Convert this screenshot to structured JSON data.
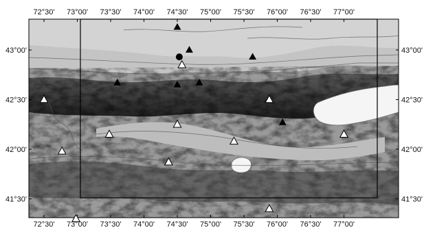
{
  "map": {
    "lon_ticks": [
      "72°30'",
      "73°00'",
      "73°30'",
      "74°00'",
      "74°30'",
      "75°00'",
      "75°30'",
      "76°00'",
      "76°30'",
      "77°00'"
    ],
    "lat_ticks": [
      "43°00'",
      "42°30'",
      "42°00'",
      "41°30'"
    ],
    "lat_left_ticks": [
      "43°00'",
      "42°30'",
      "42°00'",
      "41°30'"
    ],
    "lat_right_ticks": [
      "43°00'",
      "42°30'",
      "42°00'",
      "41°30'"
    ],
    "stations": {
      "open_triangles": [
        {
          "lon": 74.57,
          "lat": 42.85
        },
        {
          "lon": 72.5,
          "lat": 42.5
        },
        {
          "lon": 75.88,
          "lat": 42.5
        },
        {
          "lon": 74.5,
          "lat": 42.25
        },
        {
          "lon": 73.48,
          "lat": 42.15
        },
        {
          "lon": 75.35,
          "lat": 42.08
        },
        {
          "lon": 72.77,
          "lat": 41.98
        },
        {
          "lon": 74.37,
          "lat": 41.87
        },
        {
          "lon": 77.0,
          "lat": 42.15
        },
        {
          "lon": 75.88,
          "lat": 41.4
        },
        {
          "lon": 72.98,
          "lat": 41.3
        }
      ],
      "filled_triangles": [
        {
          "lon": 74.5,
          "lat": 43.23
        },
        {
          "lon": 74.68,
          "lat": 43.0
        },
        {
          "lon": 75.63,
          "lat": 42.93
        },
        {
          "lon": 73.6,
          "lat": 42.67
        },
        {
          "lon": 74.5,
          "lat": 42.65
        },
        {
          "lon": 74.83,
          "lat": 42.67
        },
        {
          "lon": 76.08,
          "lat": 42.27
        }
      ],
      "filled_circles": [
        {
          "lon": 74.53,
          "lat": 42.93
        }
      ]
    },
    "colors": {
      "water": "#f4f4f4",
      "lowland": "#cfcfcf",
      "ridge": "#2b2b2b",
      "frame": "#000000"
    }
  }
}
